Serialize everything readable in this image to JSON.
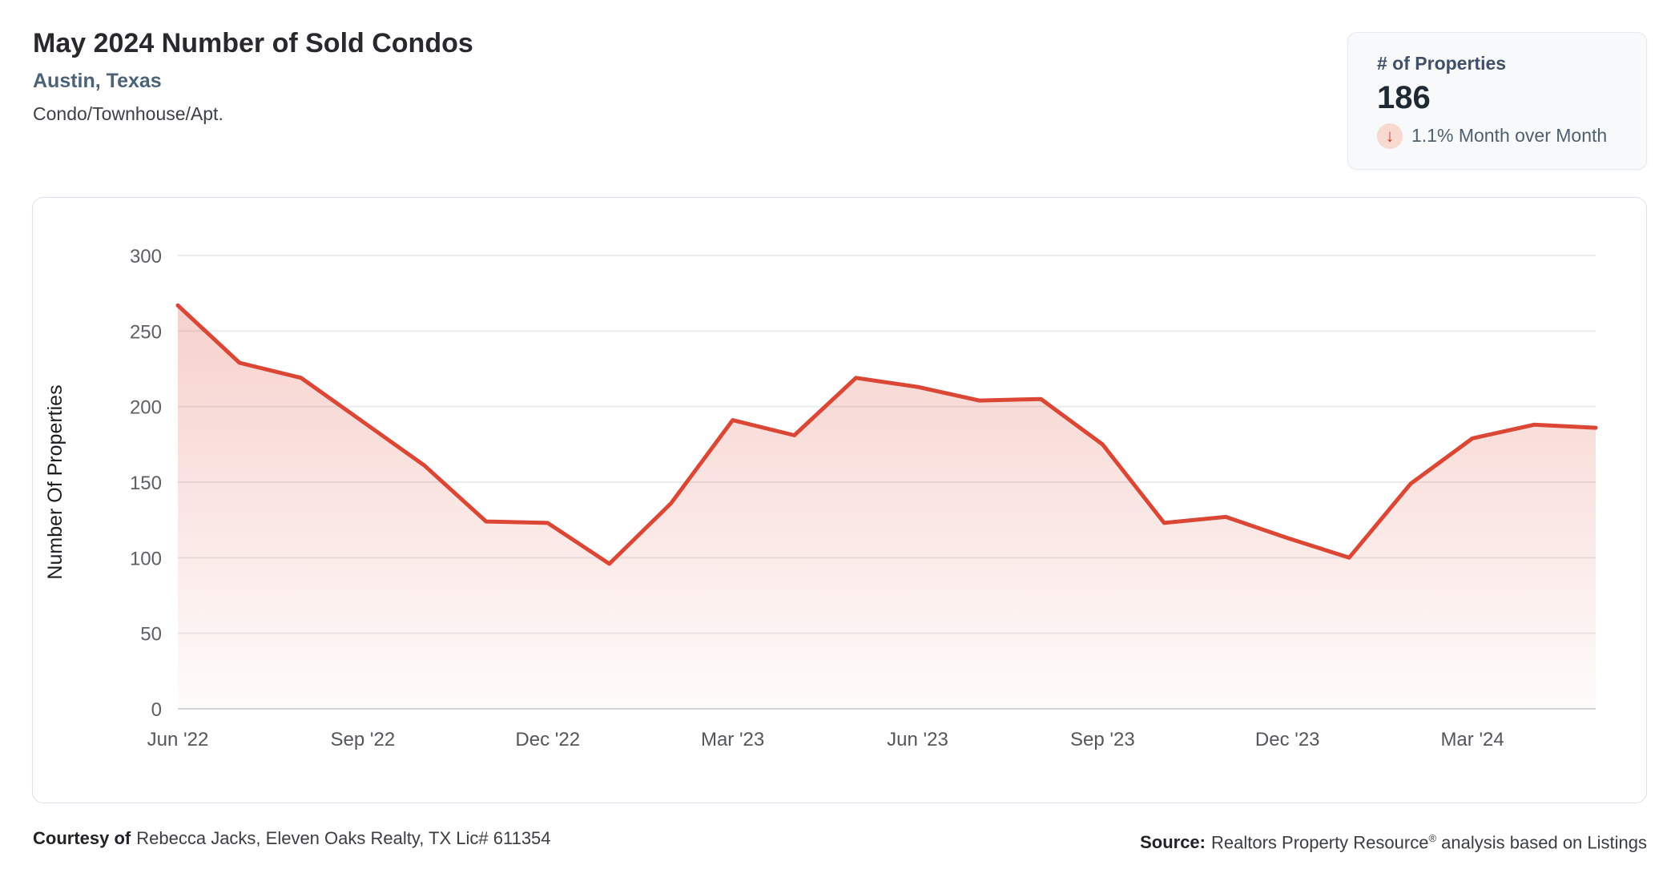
{
  "header": {
    "title": "May 2024 Number of Sold Condos",
    "location": "Austin, Texas",
    "property_type": "Condo/Townhouse/Apt."
  },
  "stat_card": {
    "label": "# of Properties",
    "value": "186",
    "change_text": "1.1% Month over Month",
    "direction": "down",
    "arrow_glyph": "↓",
    "arrow_color": "#bf4226",
    "arrow_bg_color": "#f8d9cf"
  },
  "chart_data": {
    "type": "area",
    "title": "May 2024 Number of Sold Condos",
    "ylabel": "Number Of Properties",
    "xlabel": "",
    "ylim": [
      0,
      300
    ],
    "y_ticks": [
      0,
      50,
      100,
      150,
      200,
      250,
      300
    ],
    "grid": true,
    "legend": false,
    "x": [
      "Jun '22",
      "Jul '22",
      "Aug '22",
      "Sep '22",
      "Oct '22",
      "Nov '22",
      "Dec '22",
      "Jan '23",
      "Feb '23",
      "Mar '23",
      "Apr '23",
      "May '23",
      "Jun '23",
      "Jul '23",
      "Aug '23",
      "Sep '23",
      "Oct '23",
      "Nov '23",
      "Dec '23",
      "Jan '24",
      "Feb '24",
      "Mar '24",
      "Apr '24",
      "May '24"
    ],
    "x_tick_indices": [
      0,
      3,
      6,
      9,
      12,
      15,
      18,
      21
    ],
    "series": [
      {
        "name": "Number Of Properties",
        "values": [
          267,
          229,
          219,
          190,
          161,
          124,
          123,
          96,
          136,
          191,
          181,
          219,
          213,
          204,
          205,
          175,
          123,
          127,
          113,
          100,
          149,
          179,
          188,
          186
        ]
      }
    ],
    "line_color": "#db4734",
    "fill_top_color": "rgba(219,71,52,0.28)",
    "fill_bottom_color": "rgba(219,71,52,0.02)",
    "grid_color": "#ebecee",
    "baseline_color": "#d2d5da",
    "tick_label_color": "#5d6064",
    "x_label_color": "#53565a",
    "axis_title_color": "#1c1e21"
  },
  "footer": {
    "courtesy_label": "Courtesy of",
    "courtesy_text": "Rebecca Jacks, Eleven Oaks Realty, TX Lic# 611354",
    "source_label": "Source:",
    "source_text_main": "Realtors Property Resource",
    "registered_symbol": "®",
    "source_text_tail": "analysis based on Listings"
  }
}
